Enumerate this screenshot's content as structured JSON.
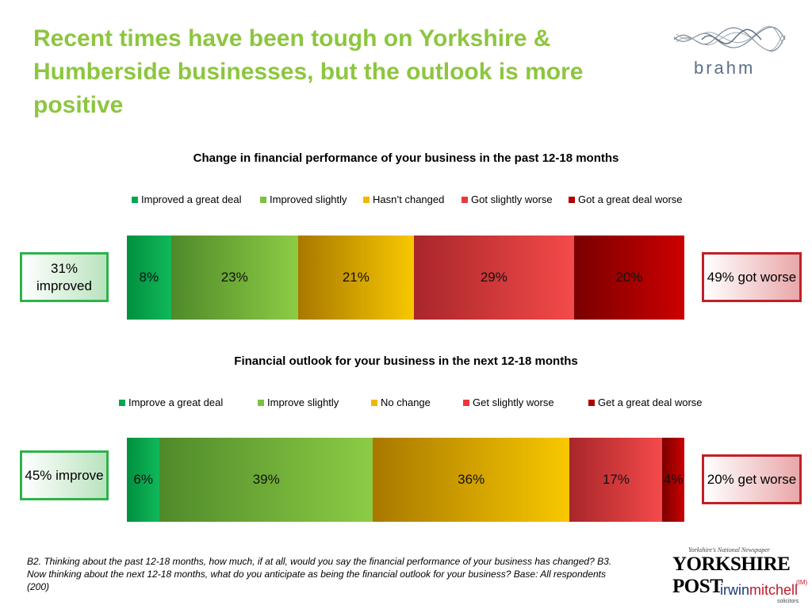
{
  "slide": {
    "title": "Recent times have been tough on Yorkshire & Humberside businesses, but the outlook is more positive",
    "footnote": "B2. Thinking about the past 12-18 months, how much, if at all, would you say the financial performance of your business has changed? B3. Now thinking about the next 12-18 months, what do you anticipate as being the financial outlook for your business? Base: All respondents (200)"
  },
  "logos": {
    "brahm": "brahm",
    "yp_tagline": "Yorkshire's National Newspaper",
    "yp": "YORKSHIRE POST",
    "im_part1": "irwin",
    "im_part2": "mitchell",
    "im_sup": "(IM)",
    "im_sub": "solicitors"
  },
  "callouts": {
    "past_left": "31% improved",
    "past_right": "49% got worse",
    "future_left": "45% improve",
    "future_right": "20% get worse"
  },
  "colors": {
    "title_green": "#8dc63f",
    "great_improve": "#00a651",
    "slight_improve": "#7cc242",
    "no_change": "#f0b800",
    "slight_worse": "#e8393c",
    "great_worse": "#b30000"
  },
  "chart_data": [
    {
      "type": "bar",
      "orientation": "horizontal-stacked-100",
      "title": "Change in financial performance of your business in the past 12-18 months",
      "legend_position": "top",
      "series": [
        {
          "name": "Improved a great deal",
          "value": 8,
          "label": "8%"
        },
        {
          "name": "Improved slightly",
          "value": 23,
          "label": "23%"
        },
        {
          "name": "Hasn’t changed",
          "value": 21,
          "label": "21%"
        },
        {
          "name": "Got slightly worse",
          "value": 29,
          "label": "29%"
        },
        {
          "name": "Got a great deal worse",
          "value": 20,
          "label": "20%"
        }
      ]
    },
    {
      "type": "bar",
      "orientation": "horizontal-stacked-100",
      "title": "Financial outlook for your business in the next 12-18 months",
      "legend_position": "top",
      "series": [
        {
          "name": "Improve a great deal",
          "value": 6,
          "label": "6%"
        },
        {
          "name": "Improve slightly",
          "value": 39,
          "label": "39%"
        },
        {
          "name": "No change",
          "value": 36,
          "label": "36%"
        },
        {
          "name": "Get slightly worse",
          "value": 17,
          "label": "17%"
        },
        {
          "name": "Get a great deal worse",
          "value": 4,
          "label": "4%"
        }
      ]
    }
  ]
}
